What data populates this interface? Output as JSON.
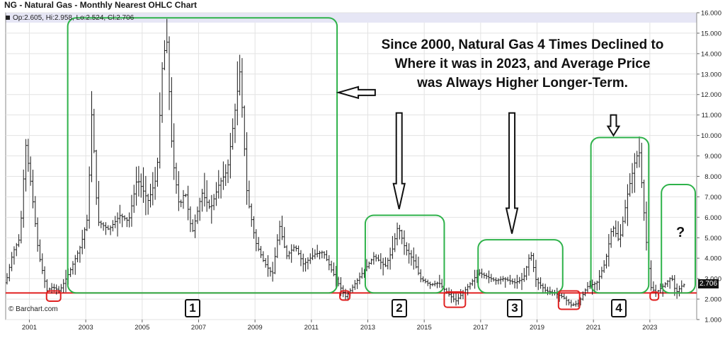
{
  "header": {
    "title": "NG - Natural Gas - Monthly Nearest OHLC Chart",
    "legend": "Op:2.605, Hi:2.958, Lo:2.524, Cl:2.706"
  },
  "annotation": {
    "headline_lines": [
      "Since 2000, Natural Gas 4 Times Declined to",
      "Where it was in 2023, and Average Price",
      "was Always Higher Longer-Term."
    ],
    "question_mark": "?",
    "box_numbers": [
      "1",
      "2",
      "3",
      "4"
    ]
  },
  "footer": {
    "copyright": "© Barchart.com"
  },
  "last_price_label": "2.706",
  "colors": {
    "accent_green": "#2eb24a",
    "support_red": "#e02020",
    "bars": "#1a1a1a",
    "grid": "#e3e3e3",
    "header_band": "#e6e6f5"
  },
  "chart_data": {
    "type": "ohlc",
    "title": "NG - Natural Gas - Monthly Nearest OHLC Chart",
    "xlabel": "",
    "ylabel": "",
    "x_ticks": [
      "2001",
      "2003",
      "2005",
      "2007",
      "2009",
      "2011",
      "2013",
      "2015",
      "2017",
      "2019",
      "2021",
      "2023"
    ],
    "y_ticks": [
      "1.000",
      "2.000",
      "3.000",
      "4.000",
      "5.000",
      "6.000",
      "7.000",
      "8.000",
      "9.000",
      "10.000",
      "11.000",
      "12.000",
      "13.000",
      "14.000",
      "15.000",
      "16.000"
    ],
    "ylim": [
      1,
      16
    ],
    "xlim": [
      2000.2,
      2024.7
    ],
    "grid": true,
    "support_level": 2.3,
    "last_value": 2.706,
    "price_path": [
      [
        2000.25,
        2.8
      ],
      [
        2000.5,
        4.3
      ],
      [
        2000.75,
        5.0
      ],
      [
        2000.95,
        9.6
      ],
      [
        2001.15,
        7.5
      ],
      [
        2001.4,
        4.3
      ],
      [
        2001.7,
        2.4
      ],
      [
        2001.9,
        2.6
      ],
      [
        2002.15,
        2.4
      ],
      [
        2002.5,
        3.3
      ],
      [
        2002.9,
        4.6
      ],
      [
        2003.15,
        6.0
      ],
      [
        2003.3,
        11.3
      ],
      [
        2003.5,
        5.8
      ],
      [
        2003.9,
        5.4
      ],
      [
        2004.3,
        6.1
      ],
      [
        2004.6,
        5.8
      ],
      [
        2004.9,
        7.9
      ],
      [
        2005.3,
        6.8
      ],
      [
        2005.6,
        8.0
      ],
      [
        2005.8,
        13.5
      ],
      [
        2005.95,
        14.8
      ],
      [
        2006.15,
        9.0
      ],
      [
        2006.4,
        6.5
      ],
      [
        2006.6,
        7.3
      ],
      [
        2006.85,
        5.2
      ],
      [
        2007.2,
        7.2
      ],
      [
        2007.5,
        6.4
      ],
      [
        2007.8,
        7.6
      ],
      [
        2008.1,
        8.3
      ],
      [
        2008.4,
        11.5
      ],
      [
        2008.55,
        13.2
      ],
      [
        2008.8,
        7.1
      ],
      [
        2009.1,
        4.8
      ],
      [
        2009.4,
        3.8
      ],
      [
        2009.7,
        3.2
      ],
      [
        2009.95,
        5.6
      ],
      [
        2010.2,
        4.1
      ],
      [
        2010.5,
        4.6
      ],
      [
        2010.8,
        3.7
      ],
      [
        2011.2,
        4.2
      ],
      [
        2011.5,
        4.3
      ],
      [
        2011.8,
        3.4
      ],
      [
        2012.1,
        2.6
      ],
      [
        2012.3,
        2.1
      ],
      [
        2012.7,
        2.9
      ],
      [
        2012.95,
        3.4
      ],
      [
        2013.3,
        4.1
      ],
      [
        2013.7,
        3.6
      ],
      [
        2013.95,
        4.4
      ],
      [
        2014.15,
        5.6
      ],
      [
        2014.4,
        4.5
      ],
      [
        2014.7,
        3.9
      ],
      [
        2014.95,
        3.0
      ],
      [
        2015.3,
        2.7
      ],
      [
        2015.6,
        2.8
      ],
      [
        2015.9,
        2.3
      ],
      [
        2016.2,
        1.9
      ],
      [
        2016.45,
        2.3
      ],
      [
        2016.8,
        2.9
      ],
      [
        2017.0,
        3.3
      ],
      [
        2017.3,
        3.1
      ],
      [
        2017.6,
        2.9
      ],
      [
        2017.9,
        3.0
      ],
      [
        2018.3,
        2.8
      ],
      [
        2018.6,
        3.0
      ],
      [
        2018.85,
        4.3
      ],
      [
        2019.05,
        2.9
      ],
      [
        2019.4,
        2.4
      ],
      [
        2019.7,
        2.3
      ],
      [
        2020.0,
        2.1
      ],
      [
        2020.3,
        1.7
      ],
      [
        2020.55,
        1.8
      ],
      [
        2020.85,
        2.6
      ],
      [
        2021.2,
        2.8
      ],
      [
        2021.5,
        3.8
      ],
      [
        2021.75,
        5.6
      ],
      [
        2022.0,
        4.8
      ],
      [
        2022.3,
        7.2
      ],
      [
        2022.55,
        8.7
      ],
      [
        2022.7,
        9.3
      ],
      [
        2022.95,
        4.9
      ],
      [
        2023.1,
        2.6
      ],
      [
        2023.3,
        2.3
      ],
      [
        2023.6,
        2.7
      ],
      [
        2023.85,
        3.1
      ],
      [
        2024.0,
        2.3
      ],
      [
        2024.25,
        2.7
      ]
    ],
    "boxes": [
      {
        "label": "1",
        "x": [
          2002.4,
          2011.95
        ],
        "y": [
          2.3,
          15.75
        ]
      },
      {
        "label": "2",
        "x": [
          2012.95,
          2015.75
        ],
        "y": [
          2.3,
          6.1
        ]
      },
      {
        "label": "3",
        "x": [
          2016.95,
          2019.95
        ],
        "y": [
          2.3,
          4.9
        ]
      },
      {
        "label": "4",
        "x": [
          2020.95,
          2023.0
        ],
        "y": [
          2.3,
          9.9
        ]
      },
      {
        "label": "?",
        "x": [
          2023.45,
          2024.65
        ],
        "y": [
          2.3,
          7.6
        ]
      }
    ],
    "lows": [
      {
        "x": [
          2001.65,
          2002.15
        ],
        "y": [
          1.9,
          2.4
        ]
      },
      {
        "x": [
          2012.05,
          2012.4
        ],
        "y": [
          1.95,
          2.4
        ]
      },
      {
        "x": [
          2015.75,
          2016.5
        ],
        "y": [
          1.6,
          2.35
        ]
      },
      {
        "x": [
          2019.8,
          2020.55
        ],
        "y": [
          1.5,
          2.4
        ]
      },
      {
        "x": [
          2023.05,
          2023.35
        ],
        "y": [
          1.95,
          2.35
        ]
      }
    ],
    "arrows": [
      {
        "direction": "left",
        "x": [
          2013.3,
          2012.0
        ],
        "y": 12.1
      },
      {
        "direction": "down",
        "x": 2014.15,
        "y": [
          11.1,
          6.4
        ]
      },
      {
        "direction": "down",
        "x": 2018.15,
        "y": [
          11.1,
          5.2
        ]
      },
      {
        "direction": "down",
        "x": 2021.75,
        "y": [
          11.0,
          10.0
        ]
      }
    ]
  }
}
